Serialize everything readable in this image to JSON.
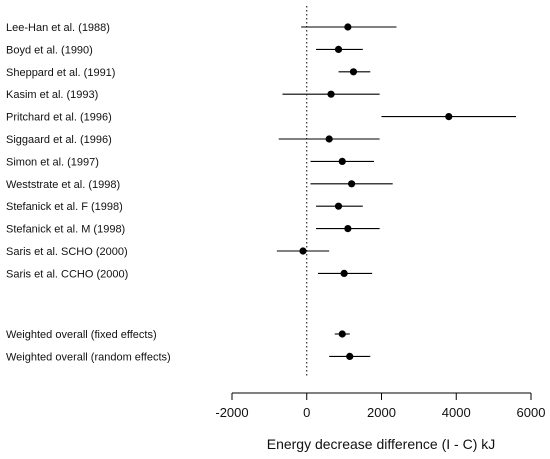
{
  "chart_data": {
    "type": "forest",
    "xlabel": "Energy decrease difference (I - C) kJ",
    "xlim": [
      -2000,
      6000
    ],
    "xticks": [
      -2000,
      0,
      2000,
      4000,
      6000
    ],
    "reference_line": 0,
    "colors": {
      "ink": "#000000"
    },
    "studies": [
      {
        "label": "Lee-Han et al. (1988)",
        "estimate": 1100,
        "lower": -150,
        "upper": 2400
      },
      {
        "label": "Boyd et al. (1990)",
        "estimate": 850,
        "lower": 250,
        "upper": 1500
      },
      {
        "label": "Sheppard et al. (1991)",
        "estimate": 1250,
        "lower": 850,
        "upper": 1700
      },
      {
        "label": "Kasim et al. (1993)",
        "estimate": 650,
        "lower": -650,
        "upper": 1950
      },
      {
        "label": "Pritchard et al. (1996)",
        "estimate": 3800,
        "lower": 2000,
        "upper": 5600
      },
      {
        "label": "Siggaard et al. (1996)",
        "estimate": 600,
        "lower": -750,
        "upper": 1950
      },
      {
        "label": "Simon et al. (1997)",
        "estimate": 950,
        "lower": 100,
        "upper": 1800
      },
      {
        "label": "Weststrate et al. (1998)",
        "estimate": 1200,
        "lower": 100,
        "upper": 2300
      },
      {
        "label": "Stefanick et al. F (1998)",
        "estimate": 850,
        "lower": 250,
        "upper": 1500
      },
      {
        "label": "Stefanick et al. M (1998)",
        "estimate": 1100,
        "lower": 250,
        "upper": 1950
      },
      {
        "label": "Saris et al. SCHO (2000)",
        "estimate": -100,
        "lower": -800,
        "upper": 600
      },
      {
        "label": "Saris et al. CCHO (2000)",
        "estimate": 1000,
        "lower": 300,
        "upper": 1750
      }
    ],
    "overall": [
      {
        "label": "Weighted overall (fixed effects)",
        "estimate": 950,
        "lower": 750,
        "upper": 1150
      },
      {
        "label": "Weighted overall (random effects)",
        "estimate": 1150,
        "lower": 600,
        "upper": 1700
      }
    ]
  }
}
